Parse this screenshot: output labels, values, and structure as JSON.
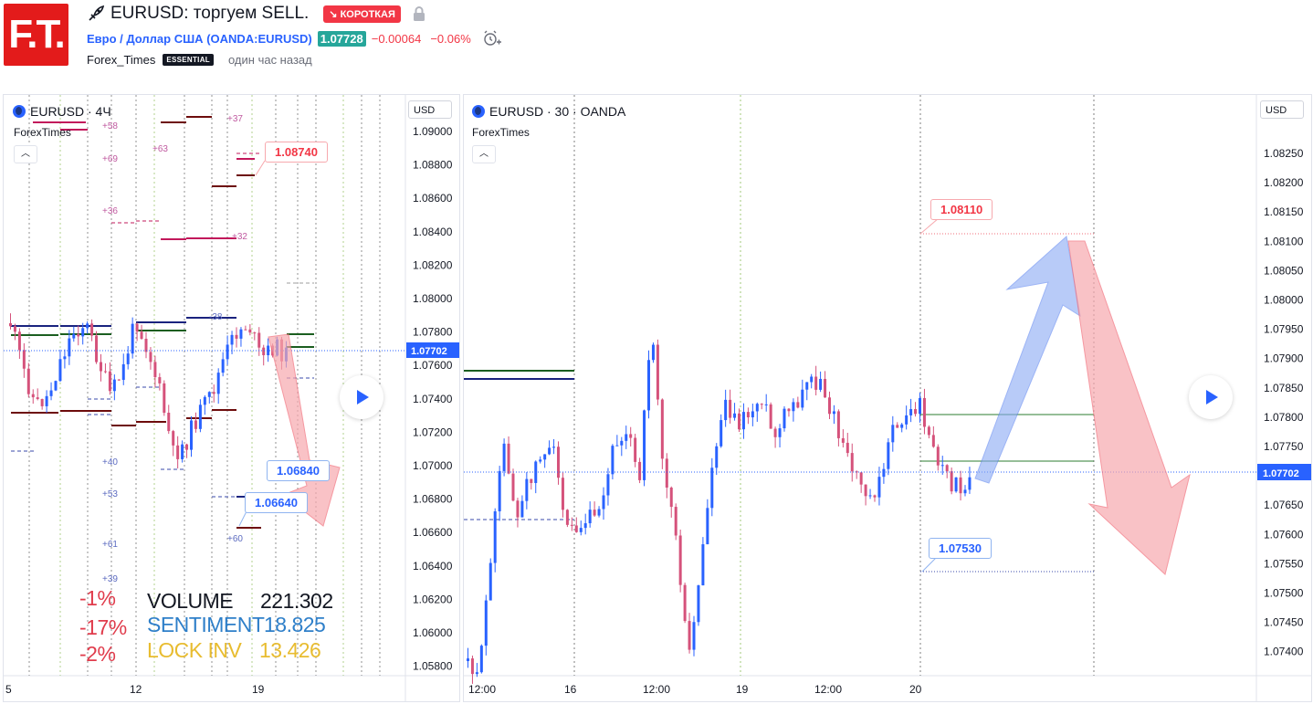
{
  "header": {
    "logo_text": "F.T.",
    "idea_title": "EURUSD: торгуем SELL.",
    "direction_badge": "↘ КОРОТКАЯ",
    "symbol_name": "Евро / Доллар США",
    "symbol_ticker": "(OANDA:EURUSD)",
    "price": "1.07728",
    "change": "−0.00064",
    "change_pct": "−0.06%",
    "author": "Forex_Times",
    "author_badge": "ESSENTIAL",
    "published": "один час назад"
  },
  "chart_left": {
    "symbol_label": "EURUSD · 4Ч",
    "indicator_label": "ForexTimes",
    "currency": "USD",
    "price_ticks": [
      "1.09000",
      "1.08800",
      "1.08600",
      "1.08400",
      "1.08200",
      "1.08000",
      "1.07800",
      "1.07600",
      "1.07400",
      "1.07200",
      "1.07000",
      "1.06800",
      "1.06600",
      "1.06400",
      "1.06200",
      "1.06000",
      "1.05800"
    ],
    "current_price": "1.07702",
    "time_ticks": [
      "5",
      "12",
      "19"
    ],
    "callouts": {
      "target_high": "1.08740",
      "level_1": "1.06840",
      "level_2": "1.06640"
    },
    "small_labels": [
      "+58",
      "+69",
      "+63",
      "+37",
      "+36",
      "+32",
      "-38",
      "+40",
      "+53",
      "+61",
      "+39",
      "+60"
    ],
    "stats": {
      "pct": [
        "-1%",
        "-17%",
        "-2%"
      ],
      "volume_label": "VOLUME",
      "volume_value": "221.302",
      "sentiment_label": "SENTIMENT",
      "sentiment_value": "18.825",
      "lockinv_label": "LOCK INV",
      "lockinv_value": "13.426"
    }
  },
  "chart_right": {
    "symbol_label": "EURUSD · 30 · OANDA",
    "indicator_label": "ForexTimes",
    "currency": "USD",
    "price_ticks": [
      "1.08250",
      "1.08200",
      "1.08150",
      "1.08100",
      "1.08050",
      "1.08000",
      "1.07950",
      "1.07900",
      "1.07850",
      "1.07800",
      "1.07750",
      "1.07700",
      "1.07650",
      "1.07600",
      "1.07550",
      "1.07500",
      "1.07450",
      "1.07400"
    ],
    "current_price": "1.07702",
    "time_ticks": [
      "12:00",
      "16",
      "12:00",
      "19",
      "12:00",
      "20"
    ],
    "callouts": {
      "target_high": "1.08110",
      "target_low": "1.07530"
    }
  },
  "colors": {
    "up": "#2962ff",
    "down": "#d5527b",
    "accent_red": "#f23645",
    "price_badge": "#26a69a"
  }
}
